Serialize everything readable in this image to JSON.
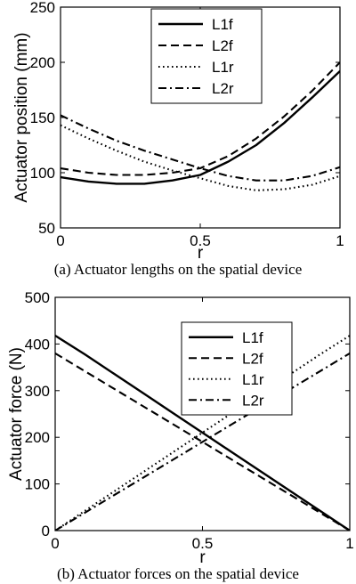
{
  "chart_data": [
    {
      "type": "line",
      "caption": "(a) Actuator lengths on the spatial device",
      "xlabel": "r",
      "ylabel": "Actuator position (mm)",
      "xlim": [
        0,
        1
      ],
      "ylim": [
        50,
        250
      ],
      "xticks": [
        "0",
        "0.5",
        "1"
      ],
      "yticks": [
        "50",
        "100",
        "150",
        "200",
        "250"
      ],
      "legend_position": "top-center",
      "grid": false,
      "x": [
        0,
        0.1,
        0.2,
        0.3,
        0.4,
        0.5,
        0.6,
        0.7,
        0.8,
        0.9,
        1.0
      ],
      "series": [
        {
          "name": "L1f",
          "style": "solid",
          "values": [
            96,
            92,
            90,
            90,
            93,
            98,
            110,
            125,
            145,
            168,
            192
          ]
        },
        {
          "name": "L2f",
          "style": "dashed",
          "values": [
            104,
            100,
            98,
            98,
            100,
            104,
            115,
            131,
            151,
            174,
            200
          ]
        },
        {
          "name": "L1r",
          "style": "dotted",
          "values": [
            143,
            131,
            120,
            110,
            102,
            95,
            88,
            84,
            85,
            89,
            97
          ]
        },
        {
          "name": "L2r",
          "style": "dashdot",
          "values": [
            152,
            140,
            129,
            120,
            112,
            104,
            97,
            93,
            93,
            97,
            105
          ]
        }
      ]
    },
    {
      "type": "line",
      "caption": "(b) Actuator forces on the spatial device",
      "xlabel": "r",
      "ylabel": "Actuator force (N)",
      "xlim": [
        0,
        1
      ],
      "ylim": [
        0,
        500
      ],
      "xticks": [
        "0",
        "0.5",
        "1"
      ],
      "yticks": [
        "0",
        "100",
        "200",
        "300",
        "400",
        "500"
      ],
      "legend_position": "top-center",
      "grid": false,
      "x": [
        0,
        0.1,
        0.2,
        0.3,
        0.4,
        0.5,
        0.6,
        0.7,
        0.8,
        0.9,
        1.0
      ],
      "series": [
        {
          "name": "L1f",
          "style": "solid",
          "values": [
            418,
            378,
            336,
            294,
            252,
            210,
            168,
            126,
            84,
            42,
            0
          ]
        },
        {
          "name": "L2f",
          "style": "dashed",
          "values": [
            380,
            342,
            304,
            266,
            228,
            190,
            152,
            114,
            76,
            38,
            0
          ]
        },
        {
          "name": "L1r",
          "style": "dotted",
          "values": [
            0,
            42,
            84,
            126,
            168,
            210,
            252,
            294,
            336,
            378,
            418
          ]
        },
        {
          "name": "L2r",
          "style": "dashdot",
          "values": [
            0,
            38,
            76,
            114,
            152,
            190,
            228,
            266,
            304,
            342,
            380
          ]
        }
      ]
    }
  ]
}
